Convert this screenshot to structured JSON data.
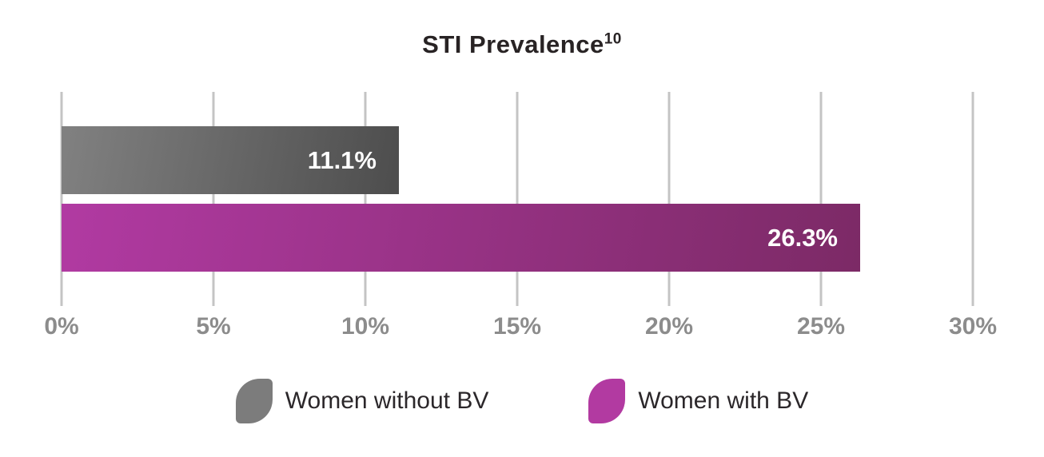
{
  "title": {
    "text": "STI Prevalence",
    "superscript": "10"
  },
  "chart_data": {
    "type": "bar",
    "orientation": "horizontal",
    "title": "STI Prevalence",
    "title_footnote_superscript": "10",
    "categories": [
      "Women without BV",
      "Women with BV"
    ],
    "values": [
      11.1,
      26.3
    ],
    "series": [
      {
        "name": "Women without BV",
        "value": 11.1,
        "value_label": "11.1%",
        "bar_color_start": "#818181",
        "bar_color_end": "#4d4d4d",
        "legend_color": "#7c7c7c"
      },
      {
        "name": "Women with BV",
        "value": 26.3,
        "value_label": "26.3%",
        "bar_color_start": "#b13aa2",
        "bar_color_end": "#7c2a66",
        "legend_color": "#b23aa1"
      }
    ],
    "x_ticks": [
      "0%",
      "5%",
      "10%",
      "15%",
      "20%",
      "25%",
      "30%"
    ],
    "xlim": [
      0,
      30
    ],
    "grid": true,
    "legend_position": "bottom"
  },
  "colors": {
    "background": "#ffffff",
    "gridline": "#c4c4c4",
    "tick_text": "#8c8c8c",
    "title_text": "#282324",
    "legend_text": "#2b272a",
    "value_text": "#ffffff"
  }
}
